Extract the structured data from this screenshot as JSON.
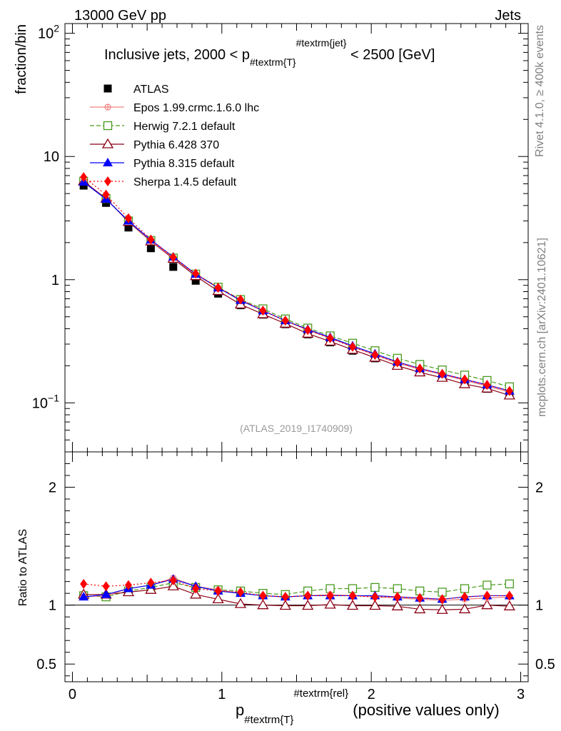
{
  "header": {
    "left": "13000 GeV pp",
    "right": "Jets"
  },
  "side_labels": {
    "rivet": "Rivet 4.1.0, ≥ 400k events",
    "mcplots": "mcplots.cern.ch [arXiv:2401.10621]"
  },
  "analysis_id": "(ATLAS_2019_I1740909)",
  "colors": {
    "ATLAS": "#000000",
    "Epos": "#f08080",
    "Herwig": "#4a9a1e",
    "Pythia6": "#8b0016",
    "Pythia8": "#0000ff",
    "Sherpa": "#ff0000"
  },
  "chart_data": [
    {
      "type": "line",
      "title": "Inclusive jets, 2000 < p_#textrm{T}^#textrm{jet} < 2500 [GeV]",
      "title_parts": {
        "pre": "Inclusive jets, 2000 < p",
        "sub": "#textrm{T}",
        "sup": "#textrm{jet}",
        "post": " < 2500 [GeV]"
      },
      "ylabel": "fraction/bin",
      "yscale": "log",
      "ylim": [
        0.04,
        120
      ],
      "xlim": [
        -0.05,
        3.05
      ],
      "yticks": [
        {
          "value": 0.1,
          "base": "10",
          "exp": "−1",
          "label": "10−1"
        },
        {
          "value": 1,
          "base": "1",
          "exp": "",
          "label": "1"
        },
        {
          "value": 10,
          "base": "10",
          "exp": "",
          "label": "10"
        },
        {
          "value": 100,
          "base": "10",
          "exp": "2",
          "label": "102"
        }
      ],
      "x": [
        0.075,
        0.225,
        0.375,
        0.525,
        0.675,
        0.825,
        0.975,
        1.125,
        1.275,
        1.425,
        1.575,
        1.725,
        1.875,
        2.025,
        2.175,
        2.325,
        2.475,
        2.625,
        2.775,
        2.925
      ],
      "series": [
        {
          "key": "ATLAS",
          "name": "ATLAS",
          "marker": "square-filled",
          "line": "none",
          "values": [
            5.8,
            4.2,
            2.65,
            1.8,
            1.27,
            0.98,
            0.77,
            0.62,
            0.52,
            0.435,
            0.36,
            0.31,
            0.265,
            0.23,
            0.2,
            0.18,
            0.165,
            0.145,
            0.13,
            0.115
          ]
        },
        {
          "key": "Epos",
          "name": "Epos 1.99.crmc.1.6.0 lhc",
          "marker": "circle-cross",
          "line": "solid",
          "values": [
            6.2,
            4.5,
            3.0,
            2.07,
            1.5,
            1.1,
            0.86,
            0.68,
            0.56,
            0.465,
            0.39,
            0.335,
            0.285,
            0.245,
            0.21,
            0.187,
            0.17,
            0.152,
            0.137,
            0.122
          ]
        },
        {
          "key": "Herwig",
          "name": "Herwig 7.2.1 default",
          "marker": "square-open",
          "line": "dashed",
          "values": [
            6.3,
            4.55,
            3.0,
            2.08,
            1.5,
            1.11,
            0.87,
            0.69,
            0.58,
            0.48,
            0.405,
            0.35,
            0.305,
            0.265,
            0.23,
            0.205,
            0.185,
            0.168,
            0.152,
            0.135
          ]
        },
        {
          "key": "Pythia6",
          "name": "Pythia 6.428 370",
          "marker": "triangle-open",
          "line": "solid",
          "values": [
            6.3,
            4.55,
            2.95,
            2.05,
            1.48,
            1.07,
            0.81,
            0.63,
            0.525,
            0.44,
            0.365,
            0.315,
            0.27,
            0.233,
            0.2,
            0.177,
            0.16,
            0.142,
            0.131,
            0.115
          ]
        },
        {
          "key": "Pythia8",
          "name": "Pythia 8.315 default",
          "marker": "triangle-filled",
          "line": "solid",
          "values": [
            6.2,
            4.5,
            3.0,
            2.1,
            1.53,
            1.11,
            0.86,
            0.68,
            0.56,
            0.465,
            0.395,
            0.34,
            0.29,
            0.25,
            0.215,
            0.19,
            0.172,
            0.155,
            0.14,
            0.125
          ]
        },
        {
          "key": "Sherpa",
          "name": "Sherpa 1.4.5 default",
          "marker": "diamond-filled",
          "line": "dotted",
          "values": [
            6.8,
            4.9,
            3.15,
            2.12,
            1.52,
            1.12,
            0.86,
            0.69,
            0.56,
            0.465,
            0.39,
            0.335,
            0.285,
            0.245,
            0.213,
            0.19,
            0.172,
            0.155,
            0.14,
            0.125
          ]
        }
      ]
    },
    {
      "type": "line",
      "title": "",
      "ylabel": "Ratio to ATLAS",
      "xlabel": "p_#textrm{T}^#textrm{rel} (positive values only)",
      "xlabel_parts": {
        "pre": "p",
        "sub": "#textrm{T}",
        "sup": "#textrm{rel}",
        "post": " (positive values only)"
      },
      "ylim": [
        0.35,
        2.3
      ],
      "xlim": [
        -0.05,
        3.05
      ],
      "yticks": [
        {
          "value": 0.5,
          "label": "0.5"
        },
        {
          "value": 1,
          "label": "1"
        },
        {
          "value": 2,
          "label": "2"
        }
      ],
      "xticks": [
        {
          "value": 0,
          "label": "0"
        },
        {
          "value": 1,
          "label": "1"
        },
        {
          "value": 2,
          "label": "2"
        },
        {
          "value": 3,
          "label": "3"
        }
      ],
      "x": [
        0.075,
        0.225,
        0.375,
        0.525,
        0.675,
        0.825,
        0.975,
        1.125,
        1.275,
        1.425,
        1.575,
        1.725,
        1.875,
        2.025,
        2.175,
        2.325,
        2.475,
        2.625,
        2.775,
        2.925
      ],
      "series": [
        {
          "key": "Epos",
          "name": "Epos 1.99.crmc.1.6.0 lhc",
          "marker": "circle-cross",
          "line": "solid",
          "values": [
            1.07,
            1.08,
            1.14,
            1.17,
            1.23,
            1.16,
            1.13,
            1.1,
            1.08,
            1.07,
            1.08,
            1.09,
            1.08,
            1.07,
            1.06,
            1.05,
            1.04,
            1.05,
            1.06,
            1.07
          ]
        },
        {
          "key": "Herwig",
          "name": "Herwig 7.2.1 default",
          "marker": "square-open",
          "line": "dashed",
          "values": [
            1.08,
            1.07,
            1.12,
            1.15,
            1.19,
            1.15,
            1.13,
            1.12,
            1.1,
            1.09,
            1.12,
            1.14,
            1.14,
            1.15,
            1.14,
            1.12,
            1.11,
            1.14,
            1.17,
            1.18
          ]
        },
        {
          "key": "Pythia6",
          "name": "Pythia 6.428 370",
          "marker": "triangle-open",
          "line": "solid",
          "values": [
            1.09,
            1.09,
            1.11,
            1.13,
            1.16,
            1.09,
            1.05,
            1.01,
            1.0,
            0.995,
            0.995,
            1.005,
            0.995,
            0.995,
            0.99,
            0.965,
            0.96,
            0.965,
            1.0,
            0.99
          ]
        },
        {
          "key": "Pythia8",
          "name": "Pythia 8.315 default",
          "marker": "triangle-filled",
          "line": "solid",
          "values": [
            1.07,
            1.09,
            1.14,
            1.17,
            1.22,
            1.16,
            1.12,
            1.1,
            1.08,
            1.07,
            1.08,
            1.08,
            1.08,
            1.08,
            1.07,
            1.06,
            1.05,
            1.07,
            1.08,
            1.08
          ]
        },
        {
          "key": "Sherpa",
          "name": "Sherpa 1.4.5 default",
          "marker": "diamond-filled",
          "line": "dotted",
          "values": [
            1.18,
            1.16,
            1.17,
            1.19,
            1.21,
            1.14,
            1.12,
            1.11,
            1.08,
            1.07,
            1.08,
            1.08,
            1.08,
            1.07,
            1.07,
            1.06,
            1.05,
            1.07,
            1.08,
            1.08
          ]
        }
      ]
    }
  ]
}
